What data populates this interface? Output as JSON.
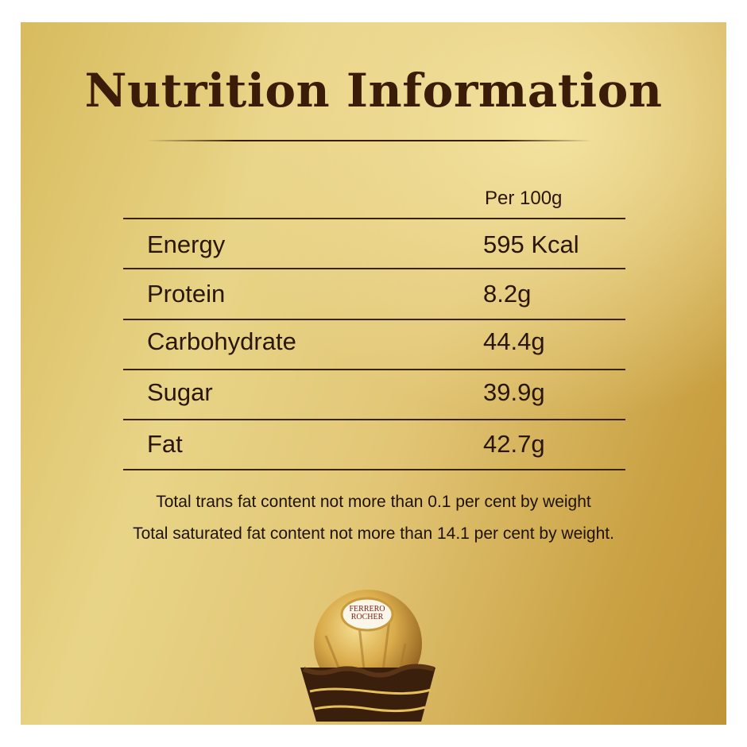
{
  "title": "Nutrition Information",
  "column_header": "Per 100g",
  "rows": [
    {
      "label": "Energy",
      "value": "595 Kcal"
    },
    {
      "label": "Protein",
      "value": "8.2g"
    },
    {
      "label": "Carbohydrate",
      "value": "44.4g"
    },
    {
      "label": "Sugar",
      "value": "39.9g"
    },
    {
      "label": "Fat",
      "value": "42.7g"
    }
  ],
  "notes": [
    "Total trans fat content not more than 0.1 per cent by weight",
    "Total saturated fat content not more than 14.1 per cent by weight."
  ],
  "product_logo_text": "FERRERO ROCHER",
  "colors": {
    "text_brown": "#3b1c08",
    "gold": "#e2c676"
  }
}
